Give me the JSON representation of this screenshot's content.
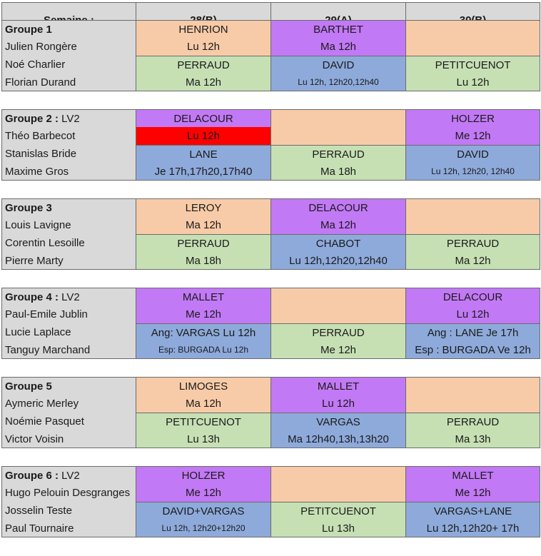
{
  "header": {
    "label": "Semaine :",
    "weeks": [
      "28(B)",
      "29(A)",
      "30(B)"
    ]
  },
  "groups": [
    {
      "title": "Groupe 1",
      "suffix": "",
      "students": [
        "Julien Rongère",
        "Noé Charlier",
        "Florian Durand"
      ],
      "top": [
        {
          "name": "HENRION",
          "time": "Lu 12h",
          "color": "#f7cba7"
        },
        {
          "name": "BARTHET",
          "time": "Ma 12h",
          "color": "#c279f5"
        },
        {
          "name": "",
          "time": "",
          "color": "#f7cba7"
        }
      ],
      "bottom": [
        {
          "name": "PERRAUD",
          "time": "Ma 12h",
          "color": "#c6e0b4"
        },
        {
          "name": "DAVID",
          "time": "Lu 12h, 12h20,12h40",
          "color": "#8eaadb",
          "small": true
        },
        {
          "name": "PETITCUENOT",
          "time": "Lu 12h",
          "color": "#c6e0b4"
        }
      ]
    },
    {
      "title": "Groupe 2 :",
      "suffix": " LV2",
      "students": [
        "Théo Barbecot",
        "Stanislas Bride",
        "Maxime Gros"
      ],
      "top": [
        {
          "name": "DELACOUR",
          "time": "Lu 12h",
          "color": "#c279f5",
          "timecolor": "#ff0000"
        },
        {
          "name": "",
          "time": "",
          "color": "#f7cba7"
        },
        {
          "name": "HOLZER",
          "time": "Me 12h",
          "color": "#c279f5"
        }
      ],
      "bottom": [
        {
          "name": "LANE",
          "time": "Je 17h,17h20,17h40",
          "color": "#8eaadb"
        },
        {
          "name": "PERRAUD",
          "time": "Ma 18h",
          "color": "#c6e0b4"
        },
        {
          "name": "DAVID",
          "time": "Lu 12h, 12h20, 12h40",
          "color": "#8eaadb",
          "small": true
        }
      ]
    },
    {
      "title": "Groupe 3",
      "suffix": "",
      "students": [
        "Louis Lavigne",
        "Corentin Lesoille",
        "Pierre Marty"
      ],
      "top": [
        {
          "name": "LEROY",
          "time": "Ma 12h",
          "color": "#f7cba7"
        },
        {
          "name": "DELACOUR",
          "time": "Ma 12h",
          "color": "#c279f5"
        },
        {
          "name": "",
          "time": "",
          "color": "#f7cba7"
        }
      ],
      "bottom": [
        {
          "name": "PERRAUD",
          "time": "Ma 18h",
          "color": "#c6e0b4"
        },
        {
          "name": "CHABOT",
          "time": "Lu 12h,12h20,12h40",
          "color": "#8eaadb"
        },
        {
          "name": "PERRAUD",
          "time": "Ma 12h",
          "color": "#c6e0b4"
        }
      ]
    },
    {
      "title": "Groupe 4 :",
      "suffix": " LV2",
      "students": [
        "Paul-Emile Jublin",
        "Lucie Laplace",
        "Tanguy Marchand"
      ],
      "top": [
        {
          "name": "MALLET",
          "time": "Me 12h",
          "color": "#c279f5"
        },
        {
          "name": "",
          "time": "",
          "color": "#f7cba7"
        },
        {
          "name": "DELACOUR",
          "time": "Lu 12h",
          "color": "#c279f5"
        }
      ],
      "bottom": [
        {
          "name": "Ang: VARGAS Lu 12h",
          "time": "Esp: BURGADA Lu 12h",
          "color": "#8eaadb",
          "small": true
        },
        {
          "name": "PERRAUD",
          "time": "Me 12h",
          "color": "#c6e0b4"
        },
        {
          "name": "Ang : LANE Je 17h",
          "time": "Esp : BURGADA Ve 12h",
          "color": "#8eaadb"
        }
      ]
    },
    {
      "title": "Groupe 5",
      "suffix": "",
      "students": [
        "Aymeric Merley",
        "Noémie Pasquet",
        "Victor Voisin"
      ],
      "top": [
        {
          "name": "LIMOGES",
          "time": "Ma 12h",
          "color": "#f7cba7"
        },
        {
          "name": "MALLET",
          "time": "Lu 12h",
          "color": "#c279f5"
        },
        {
          "name": "",
          "time": "",
          "color": "#f7cba7"
        }
      ],
      "bottom": [
        {
          "name": "PETITCUENOT",
          "time": "Lu 13h",
          "color": "#c6e0b4"
        },
        {
          "name": "VARGAS",
          "time": "Ma 12h40,13h,13h20",
          "color": "#8eaadb"
        },
        {
          "name": "PERRAUD",
          "time": "Ma 13h",
          "color": "#c6e0b4"
        }
      ]
    },
    {
      "title": "Groupe 6 :",
      "suffix": " LV2",
      "students": [
        "Hugo Pelouin Desgranges",
        "Josselin Teste",
        "Paul Tournaire"
      ],
      "top": [
        {
          "name": "HOLZER",
          "time": "Me 12h",
          "color": "#c279f5"
        },
        {
          "name": "",
          "time": "",
          "color": "#f7cba7"
        },
        {
          "name": "MALLET",
          "time": "Me 12h",
          "color": "#c279f5"
        }
      ],
      "bottom": [
        {
          "name": "DAVID+VARGAS",
          "time": "Lu 12h, 12h20+12h20",
          "color": "#8eaadb",
          "small": true
        },
        {
          "name": "PETITCUENOT",
          "time": "Lu 13h",
          "color": "#c6e0b4"
        },
        {
          "name": "VARGAS+LANE",
          "time": "Lu 12h,12h20+ 17h",
          "color": "#8eaadb"
        }
      ]
    }
  ]
}
